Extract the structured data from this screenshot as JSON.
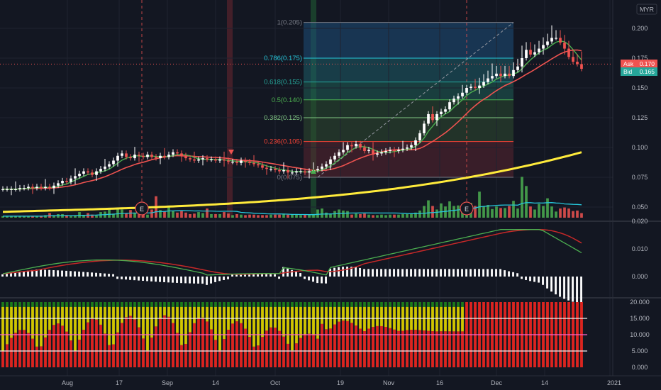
{
  "currency": "MYR",
  "bid_ask": {
    "ask_label": "Ask",
    "ask_value": "0.170",
    "bid_label": "Bid",
    "bid_value": "0.165",
    "ask_color": "#ef5350",
    "bid_color": "#26a69a"
  },
  "colors": {
    "background": "#131722",
    "grid": "#1f2330",
    "up_candle": "#ffffff",
    "down_candle": "#ef5350",
    "ma_short": "#4caf50",
    "ma_mid": "#ef5350",
    "ma_long": "#ffeb3b",
    "vol_ma": "#26c6da",
    "macd_line": "#4caf50",
    "signal_line": "#c62828",
    "hist": "#ffffff"
  },
  "markers": {
    "earnings_label": "E"
  },
  "chart_data": [
    {
      "type": "candlestick",
      "pane": "price",
      "ylim": [
        0.04,
        0.21
      ],
      "y_ticks": [
        "0.200",
        "0.175",
        "0.150",
        "0.125",
        "0.100",
        "0.075",
        "0.050"
      ],
      "x_ticks": [
        "Aug",
        "17",
        "Sep",
        "14",
        "Oct",
        "19",
        "Nov",
        "16",
        "Dec",
        "14",
        "2021"
      ],
      "close": [
        0.065,
        0.065,
        0.065,
        0.065,
        0.066,
        0.066,
        0.067,
        0.066,
        0.067,
        0.066,
        0.067,
        0.066,
        0.068,
        0.07,
        0.072,
        0.071,
        0.074,
        0.076,
        0.078,
        0.08,
        0.079,
        0.077,
        0.08,
        0.082,
        0.084,
        0.086,
        0.089,
        0.093,
        0.095,
        0.092,
        0.091,
        0.094,
        0.093,
        0.092,
        0.094,
        0.092,
        0.091,
        0.093,
        0.092,
        0.094,
        0.096,
        0.095,
        0.093,
        0.091,
        0.09,
        0.089,
        0.09,
        0.091,
        0.09,
        0.09,
        0.089,
        0.09,
        0.089,
        0.088,
        0.088,
        0.087,
        0.089,
        0.088,
        0.087,
        0.086,
        0.085,
        0.083,
        0.082,
        0.082,
        0.081,
        0.08,
        0.081,
        0.079,
        0.079,
        0.08,
        0.08,
        0.079,
        0.08,
        0.081,
        0.082,
        0.084,
        0.086,
        0.09,
        0.093,
        0.096,
        0.098,
        0.102,
        0.101,
        0.103,
        0.1,
        0.097,
        0.098,
        0.094,
        0.095,
        0.096,
        0.097,
        0.098,
        0.097,
        0.098,
        0.099,
        0.1,
        0.102,
        0.106,
        0.112,
        0.12,
        0.128,
        0.123,
        0.128,
        0.13,
        0.132,
        0.138,
        0.141,
        0.143,
        0.146,
        0.15,
        0.151,
        0.15,
        0.152,
        0.155,
        0.158,
        0.16,
        0.162,
        0.16,
        0.162,
        0.16,
        0.165,
        0.168,
        0.175,
        0.182,
        0.178,
        0.18,
        0.183,
        0.186,
        0.189,
        0.192,
        0.192,
        0.188,
        0.183,
        0.176,
        0.172,
        0.17,
        0.166
      ],
      "volume": [
        0.3,
        0.3,
        0.3,
        0.3,
        0.3,
        0.3,
        0.3,
        0.3,
        0.3,
        0.4,
        0.5,
        0.9,
        0.5,
        0.7,
        0.7,
        0.5,
        0.3,
        0.4,
        1.1,
        0.5,
        0.9,
        0.6,
        0.4,
        1.1,
        1.2,
        1.7,
        0.8,
        1.7,
        1.6,
        0.9,
        1.5,
        1.0,
        0.7,
        0.7,
        0.6,
        1.6,
        4.2,
        1.5,
        1.3,
        2.3,
        1.3,
        1.0,
        1.3,
        1.0,
        0.7,
        0.8,
        1.1,
        0.9,
        1.8,
        0.7,
        0.7,
        0.7,
        1.1,
        0.8,
        0.5,
        0.7,
        0.6,
        0.5,
        0.6,
        0.6,
        0.5,
        0.5,
        0.5,
        0.6,
        0.6,
        0.6,
        0.8,
        0.6,
        0.7,
        0.6,
        0.5,
        0.6,
        0.6,
        0.7,
        1.6,
        1.8,
        1.0,
        0.7,
        1.3,
        1.6,
        1.4,
        1.3,
        0.6,
        0.8,
        0.7,
        0.8,
        0.6,
        0.5,
        0.5,
        0.6,
        0.5,
        0.6,
        0.6,
        0.6,
        0.7,
        0.7,
        0.8,
        1.0,
        1.4,
        2.3,
        3.4,
        2.3,
        1.6,
        2.8,
        2.2,
        3.2,
        2.3,
        2.4,
        2.6,
        1.9,
        2.9,
        2.3,
        5.1,
        2.2,
        2.5,
        1.7,
        2.2,
        1.9,
        1.9,
        2.3,
        3.3,
        1.8,
        8.0,
        6.2,
        2.2,
        1.6,
        2.7,
        2.3,
        3.8,
        2.2,
        1.2,
        1.8,
        2.0,
        1.8,
        1.3,
        1.4,
        0.9
      ]
    },
    {
      "type": "line",
      "pane": "fibonacci",
      "levels": [
        {
          "label": "1(0.205)",
          "value": 0.205,
          "color": "#787b86"
        },
        {
          "label": "0.786(0.175)",
          "value": 0.175,
          "color": "#26c6da"
        },
        {
          "label": "0.618(0.155)",
          "value": 0.155,
          "color": "#26a69a"
        },
        {
          "label": "0.5(0.140)",
          "value": 0.14,
          "color": "#4caf50"
        },
        {
          "label": "0.382(0.125)",
          "value": 0.125,
          "color": "#81c784"
        },
        {
          "label": "0.236(0.105)",
          "value": 0.105,
          "color": "#f44336"
        },
        {
          "label": "0(0.075)",
          "value": 0.075,
          "color": "#787b86"
        }
      ]
    },
    {
      "type": "line",
      "pane": "macd",
      "ylim": [
        -0.005,
        0.02
      ],
      "y_ticks": [
        "0.020",
        "0.010",
        "0.000"
      ]
    },
    {
      "type": "bar",
      "pane": "oscillator",
      "ylim": [
        -0.5,
        21
      ],
      "y_ticks": [
        "20.000",
        "15.000",
        "10.000",
        "5.000",
        "0.000"
      ],
      "reference_lines": [
        5,
        10,
        15
      ]
    }
  ]
}
